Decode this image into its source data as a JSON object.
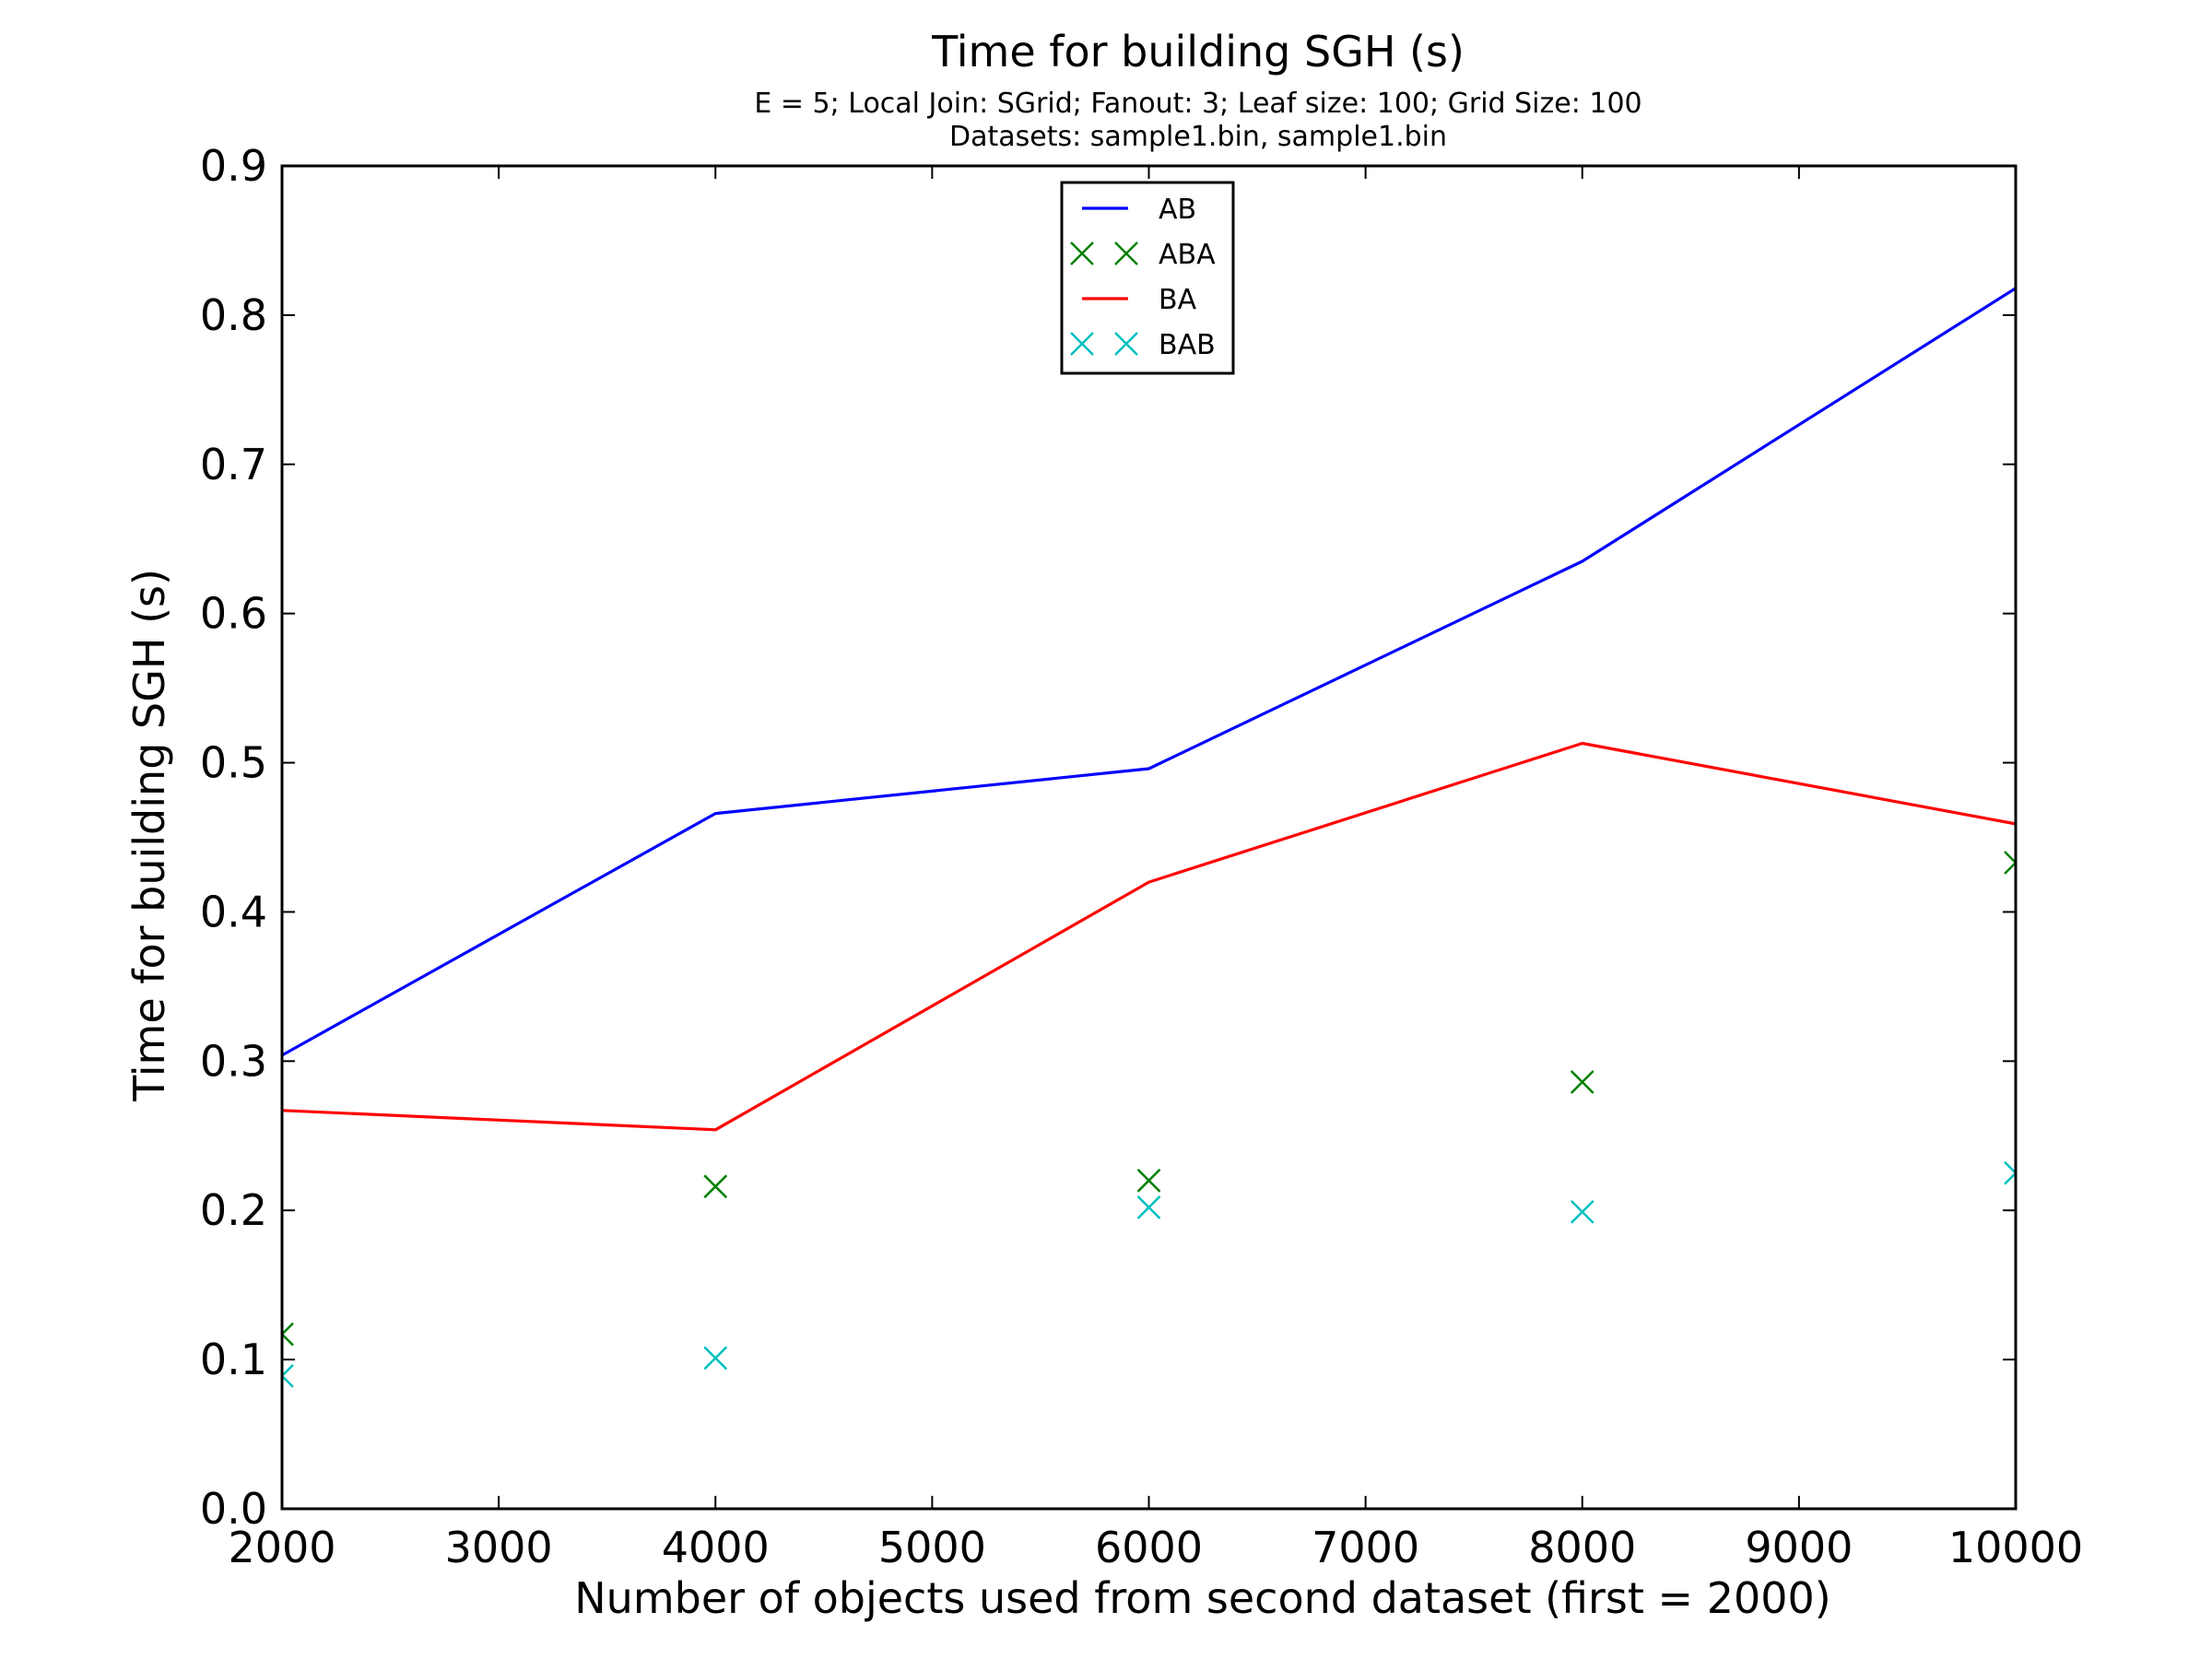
{
  "chart_data": {
    "type": "line",
    "title": "Time for building SGH (s)",
    "subtitle_lines": [
      "E = 5; Local Join: SGrid; Fanout: 3; Leaf size: 100; Grid Size: 100",
      "Datasets: sample1.bin, sample1.bin"
    ],
    "xlabel": "Number of objects used from second dataset (first = 2000)",
    "ylabel": "Time for building SGH (s)",
    "xlim": [
      2000,
      10000
    ],
    "ylim": [
      0.0,
      0.9
    ],
    "xticks": [
      "2000",
      "3000",
      "4000",
      "5000",
      "6000",
      "7000",
      "8000",
      "9000",
      "10000"
    ],
    "yticks": [
      "0.0",
      "0.1",
      "0.2",
      "0.3",
      "0.4",
      "0.5",
      "0.6",
      "0.7",
      "0.8",
      "0.9"
    ],
    "grid": false,
    "legend_position": "top-center",
    "x": [
      2000,
      4000,
      6000,
      8000,
      10000
    ],
    "series": [
      {
        "name": "AB",
        "style": "line",
        "color": "#0000ff",
        "values": [
          0.304,
          0.466,
          0.496,
          0.635,
          0.818
        ]
      },
      {
        "name": "ABA",
        "style": "x-marker",
        "color": "#008000",
        "values": [
          0.117,
          0.216,
          0.22,
          0.286,
          0.433
        ]
      },
      {
        "name": "BA",
        "style": "line",
        "color": "#ff0000",
        "values": [
          0.267,
          0.254,
          0.42,
          0.513,
          0.459
        ]
      },
      {
        "name": "BAB",
        "style": "x-marker",
        "color": "#00bfbf",
        "values": [
          0.089,
          0.101,
          0.202,
          0.199,
          0.225
        ]
      }
    ]
  }
}
